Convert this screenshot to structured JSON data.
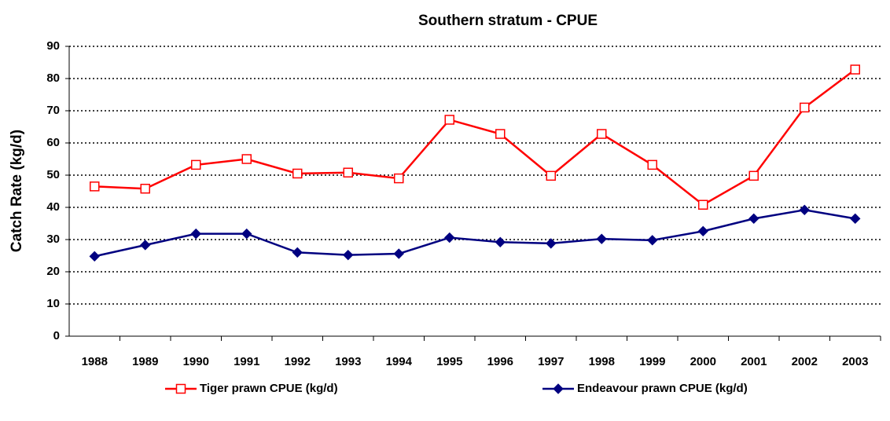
{
  "chart_data": {
    "type": "line",
    "title": "Southern stratum - CPUE",
    "y_label": "Catch Rate (kg/d)",
    "categories": [
      "1988",
      "1989",
      "1990",
      "1991",
      "1992",
      "1993",
      "1994",
      "1995",
      "1996",
      "1997",
      "1998",
      "1999",
      "2000",
      "2001",
      "2002",
      "2003"
    ],
    "series": [
      {
        "name": "Tiger prawn CPUE (kg/d)",
        "color": "#ff0000",
        "marker": "open-square",
        "values": [
          46.5,
          45.8,
          53.2,
          55,
          50.5,
          50.8,
          49,
          67.2,
          62.8,
          49.8,
          62.8,
          53.2,
          40.8,
          49.8,
          71,
          82.8
        ]
      },
      {
        "name": "Endeavour prawn CPUE (kg/d)",
        "color": "#000080",
        "marker": "diamond",
        "values": [
          24.8,
          28.3,
          31.8,
          31.8,
          26,
          25.2,
          25.6,
          30.6,
          29.2,
          28.8,
          30.2,
          29.8,
          32.6,
          36.5,
          39.2,
          36.5
        ]
      }
    ],
    "ylim": [
      0,
      90
    ],
    "yticks": [
      0,
      10,
      20,
      30,
      40,
      50,
      60,
      70,
      80,
      90
    ],
    "grid": true,
    "legend": "bottom"
  }
}
